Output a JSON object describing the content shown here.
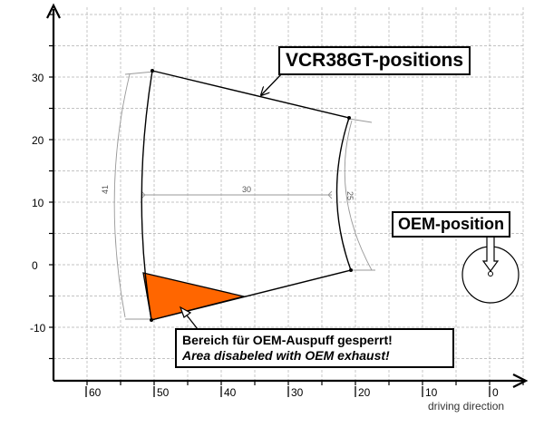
{
  "labels": {
    "vcr_positions": "VCR38GT-positions",
    "oem_position": "OEM-position",
    "note_de": "Bereich für OEM-Auspuff gesperrt!",
    "note_en": "Area disabeled with OEM exhaust!",
    "driving_direction": "driving direction"
  },
  "axes": {
    "y_ticks": [
      "30",
      "20",
      "10",
      "0",
      "-10"
    ],
    "x_ticks": [
      "60",
      "50",
      "40",
      "30",
      "20",
      "10",
      "0"
    ]
  },
  "dimensions": {
    "left_arc": "41",
    "span": "30",
    "right_arc": "25"
  },
  "colors": {
    "grid": "#b0b0b0",
    "axis": "#000000",
    "blocked_area": "#ff6600",
    "dimension_lines": "#999999"
  }
}
